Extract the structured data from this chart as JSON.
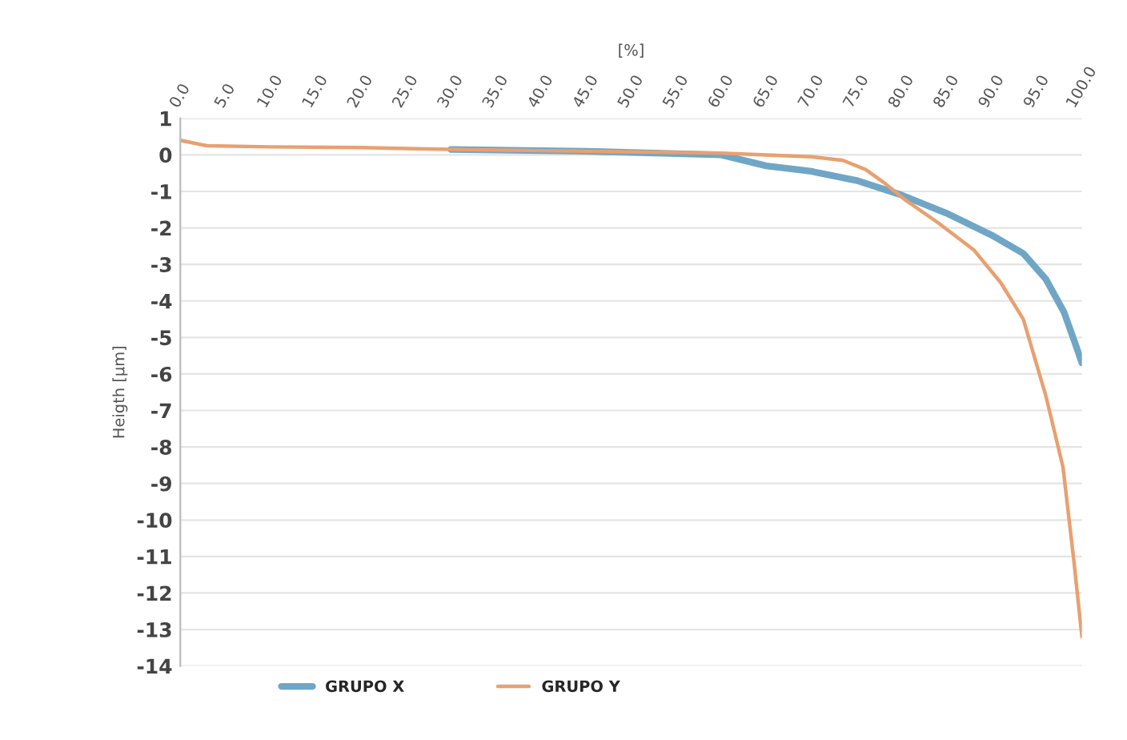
{
  "chart_data": {
    "type": "line",
    "xlabel": "[%]",
    "ylabel": "Heigth [µm]",
    "xlim": [
      0,
      100
    ],
    "xticks": [
      {
        "value": 0,
        "label": "0.0"
      },
      {
        "value": 5,
        "label": "5.0"
      },
      {
        "value": 10,
        "label": "10.0"
      },
      {
        "value": 15,
        "label": "15.0"
      },
      {
        "value": 20,
        "label": "20.0"
      },
      {
        "value": 25,
        "label": "25.0"
      },
      {
        "value": 30,
        "label": "30.0"
      },
      {
        "value": 35,
        "label": "35.0"
      },
      {
        "value": 40,
        "label": "40.0"
      },
      {
        "value": 45,
        "label": "45.0"
      },
      {
        "value": 50,
        "label": "50.0"
      },
      {
        "value": 55,
        "label": "55.0"
      },
      {
        "value": 60,
        "label": "60.0"
      },
      {
        "value": 65,
        "label": "65.0"
      },
      {
        "value": 70,
        "label": "70.0"
      },
      {
        "value": 75,
        "label": "75.0"
      },
      {
        "value": 80,
        "label": "80.0"
      },
      {
        "value": 85,
        "label": "85.0"
      },
      {
        "value": 90,
        "label": "90.0"
      },
      {
        "value": 95,
        "label": "95.0"
      },
      {
        "value": 100,
        "label": "100.0"
      }
    ],
    "ylim": [
      -14,
      1
    ],
    "yticks": [
      1,
      0,
      -1,
      -2,
      -3,
      -4,
      -5,
      -6,
      -7,
      -8,
      -9,
      -10,
      -11,
      -12,
      -13,
      -14
    ],
    "grid": "y",
    "legend": "bottom",
    "marker": "none",
    "line_style": "solid",
    "series": [
      {
        "name": "GRUPO X",
        "color": "#6fa6c6",
        "x": [
          30,
          45,
          60,
          65,
          70,
          75,
          80,
          85,
          90,
          93.5,
          96,
          98,
          99.3,
          100
        ],
        "values": [
          0.15,
          0.1,
          0.0,
          -0.3,
          -0.45,
          -0.7,
          -1.1,
          -1.6,
          -2.2,
          -2.7,
          -3.4,
          -4.3,
          -5.2,
          -5.7
        ]
      },
      {
        "name": "GRUPO Y",
        "color": "#e8a070",
        "x": [
          0,
          1,
          3,
          10,
          20,
          30,
          45,
          60,
          65,
          70,
          73.5,
          76,
          78,
          80.5,
          84,
          88,
          91,
          93.5,
          96,
          97.9,
          99.1,
          100
        ],
        "values": [
          0.4,
          0.35,
          0.25,
          0.22,
          0.2,
          0.15,
          0.1,
          0.05,
          0.0,
          -0.05,
          -0.15,
          -0.4,
          -0.75,
          -1.25,
          -1.85,
          -2.6,
          -3.5,
          -4.5,
          -6.6,
          -8.55,
          -11.1,
          -13.2
        ]
      }
    ]
  }
}
